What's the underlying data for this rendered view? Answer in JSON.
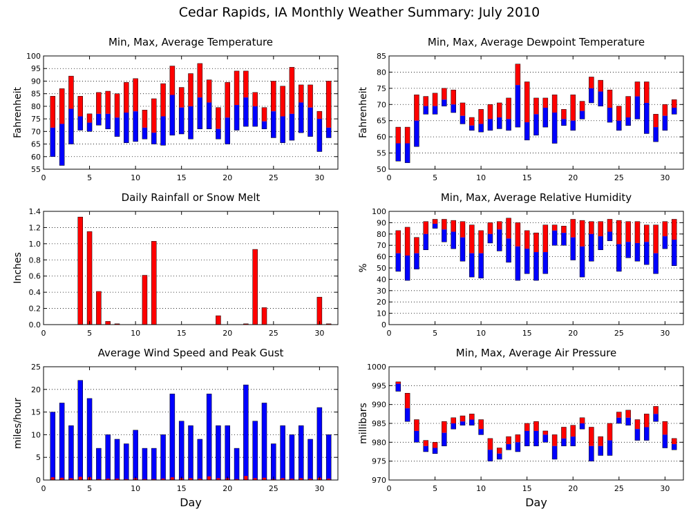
{
  "page": {
    "title": "Cedar Rapids, IA Monthly Weather Summary: July 2010",
    "colors": {
      "red": "#ff0000",
      "blue": "#0000ff",
      "black": "#000000"
    }
  },
  "chart_data": [
    {
      "id": "temp",
      "type": "bar",
      "style": "range",
      "title": "Min, Max, Average Temperature",
      "xlabel": "",
      "ylabel": "Fahrenheit",
      "xlim": [
        0,
        32
      ],
      "ylim": [
        55,
        100
      ],
      "xticks": [
        0,
        5,
        10,
        15,
        20,
        25,
        30
      ],
      "yticks": [
        55,
        60,
        65,
        70,
        75,
        80,
        85,
        90,
        95,
        100
      ],
      "grid": true,
      "x": [
        1,
        2,
        3,
        4,
        5,
        6,
        7,
        8,
        9,
        10,
        11,
        12,
        13,
        14,
        15,
        16,
        17,
        18,
        19,
        20,
        21,
        22,
        23,
        24,
        25,
        26,
        27,
        28,
        29,
        30,
        31
      ],
      "min": [
        60,
        56.5,
        65,
        70.5,
        70,
        72.5,
        71,
        68,
        65.5,
        66,
        67,
        65,
        64.5,
        68.5,
        69,
        67,
        71,
        71,
        67,
        65,
        70.5,
        72,
        72,
        71,
        67.5,
        65.5,
        66.5,
        69.5,
        68,
        62,
        67.5
      ],
      "avg": [
        71.5,
        73,
        79,
        76,
        73.5,
        77,
        77,
        75.5,
        77.5,
        78,
        71.5,
        69.5,
        76,
        84.5,
        79.5,
        80,
        83.5,
        81.5,
        71,
        75.5,
        80.5,
        83.5,
        80,
        74,
        78,
        76,
        77,
        81.5,
        79.5,
        75,
        71.5
      ],
      "max": [
        84,
        87,
        92,
        84,
        77,
        85.5,
        86,
        85,
        89.5,
        91,
        78.5,
        83,
        89,
        96,
        87.5,
        93,
        97,
        90.5,
        79.5,
        89.5,
        94,
        94,
        85.5,
        79.5,
        90,
        88,
        95.5,
        88.5,
        88.5,
        78,
        90
      ]
    },
    {
      "id": "dewpoint",
      "type": "bar",
      "style": "range",
      "title": "Min, Max, Average Dewpoint Temperature",
      "xlabel": "",
      "ylabel": "Fahrenheit",
      "xlim": [
        0,
        32
      ],
      "ylim": [
        50,
        85
      ],
      "xticks": [
        0,
        5,
        10,
        15,
        20,
        25,
        30
      ],
      "yticks": [
        50,
        55,
        60,
        65,
        70,
        75,
        80,
        85
      ],
      "grid": true,
      "x": [
        1,
        2,
        3,
        4,
        5,
        6,
        7,
        8,
        9,
        10,
        11,
        12,
        13,
        14,
        15,
        16,
        17,
        18,
        19,
        20,
        21,
        22,
        23,
        24,
        25,
        26,
        27,
        28,
        29,
        30,
        31
      ],
      "min": [
        52.5,
        52,
        57,
        67,
        67,
        69.5,
        67.5,
        64,
        62,
        61.5,
        62,
        62.5,
        62,
        63,
        59,
        60.5,
        63,
        58,
        63.5,
        62,
        65.5,
        70.5,
        69.5,
        64.5,
        62,
        63.5,
        65.5,
        61,
        58.5,
        62,
        67
      ],
      "avg": [
        58,
        58,
        65,
        69.5,
        69.5,
        71.5,
        70,
        66.5,
        63.5,
        64,
        65.5,
        66,
        65.5,
        76,
        64.5,
        67,
        69,
        67.5,
        65.5,
        65,
        68,
        75,
        74,
        69,
        65,
        66,
        72.5,
        70.5,
        63,
        66.5,
        69
      ],
      "max": [
        63,
        63,
        73,
        72.5,
        73.5,
        75,
        74.5,
        70.5,
        66,
        68.5,
        70,
        70.5,
        72,
        82.5,
        77,
        72,
        72,
        73,
        68.5,
        73,
        71,
        78.5,
        77.5,
        74.5,
        69.5,
        72.5,
        77,
        77,
        67,
        70,
        71.5
      ]
    },
    {
      "id": "rain",
      "type": "bar",
      "title": "Daily Rainfall or Snow Melt",
      "xlabel": "",
      "ylabel": "Inches",
      "xlim": [
        0,
        32
      ],
      "ylim": [
        0,
        1.4
      ],
      "xticks": [
        0,
        5,
        10,
        15,
        20,
        25,
        30
      ],
      "yticks": [
        0,
        0.2,
        0.4,
        0.6,
        0.8,
        1,
        1.2,
        1.4
      ],
      "ytick_labels": [
        "0.0",
        "0.2",
        "0.4",
        "0.6",
        "0.8",
        "1.0",
        "1.2",
        "1.4"
      ],
      "grid": true,
      "x": [
        1,
        2,
        3,
        4,
        5,
        6,
        7,
        8,
        9,
        10,
        11,
        12,
        13,
        14,
        15,
        16,
        17,
        18,
        19,
        20,
        21,
        22,
        23,
        24,
        25,
        26,
        27,
        28,
        29,
        30,
        31
      ],
      "values": [
        0,
        0,
        0,
        1.33,
        1.15,
        0.41,
        0.04,
        0.01,
        0,
        0,
        0.61,
        1.03,
        0,
        0,
        0,
        0,
        0,
        0,
        0.11,
        0,
        0,
        0.01,
        0.93,
        0.21,
        0,
        0,
        0,
        0,
        0,
        0.34,
        0.01
      ]
    },
    {
      "id": "humidity",
      "type": "bar",
      "style": "range",
      "title": "Min, Max, Average Relative Humidity",
      "xlabel": "",
      "ylabel": "%",
      "xlim": [
        0,
        32
      ],
      "ylim": [
        0,
        100
      ],
      "xticks": [
        0,
        5,
        10,
        15,
        20,
        25,
        30
      ],
      "yticks": [
        0,
        10,
        20,
        30,
        40,
        50,
        60,
        70,
        80,
        90,
        100
      ],
      "grid": true,
      "x": [
        1,
        2,
        3,
        4,
        5,
        6,
        7,
        8,
        9,
        10,
        11,
        12,
        13,
        14,
        15,
        16,
        17,
        18,
        19,
        20,
        21,
        22,
        23,
        24,
        25,
        26,
        27,
        28,
        29,
        30,
        31
      ],
      "min": [
        47,
        39,
        49,
        66,
        85,
        73,
        67,
        56,
        42,
        41,
        72,
        65,
        55,
        39,
        45,
        39,
        45,
        70,
        70,
        57,
        42,
        56,
        66,
        74,
        47,
        59,
        56,
        53,
        45,
        67,
        52
      ],
      "avg": [
        63,
        61,
        63,
        80,
        89,
        84,
        82,
        77,
        63,
        63,
        80,
        84,
        76,
        69,
        67,
        64,
        64,
        83,
        81,
        77,
        69,
        80,
        78,
        82,
        71,
        73,
        72,
        73,
        63,
        78,
        75
      ],
      "max": [
        83,
        86,
        77,
        91,
        93,
        93,
        92,
        91,
        88,
        83,
        90,
        91,
        94,
        90,
        83,
        81,
        88,
        88,
        87,
        93,
        92,
        91,
        91,
        93,
        92,
        91,
        91,
        88,
        88,
        91,
        93
      ]
    },
    {
      "id": "wind",
      "type": "bar",
      "title": "Average Wind Speed and Peak Gust",
      "xlabel": "Day",
      "ylabel": "miles/hour",
      "xlim": [
        0,
        32
      ],
      "ylim": [
        0,
        25
      ],
      "xticks": [
        0,
        5,
        10,
        15,
        20,
        25,
        30
      ],
      "yticks": [
        0,
        5,
        10,
        15,
        20,
        25
      ],
      "grid": true,
      "x": [
        1,
        2,
        3,
        4,
        5,
        6,
        7,
        8,
        9,
        10,
        11,
        12,
        13,
        14,
        15,
        16,
        17,
        18,
        19,
        20,
        21,
        22,
        23,
        24,
        25,
        26,
        27,
        28,
        29,
        30,
        31
      ],
      "series": [
        {
          "values": [
            15,
            17,
            12,
            22,
            18,
            7,
            10,
            9,
            8,
            11,
            7,
            7,
            10,
            19,
            13,
            12,
            9,
            19,
            12,
            12,
            7,
            21,
            13,
            17,
            8,
            12,
            10,
            12,
            9,
            16,
            10
          ]
        },
        {
          "values": [
            0.6,
            0.5,
            0.4,
            0.7,
            0.6,
            0.2,
            0.3,
            0.3,
            0.2,
            0.4,
            0.2,
            0.2,
            0.3,
            0.6,
            0.4,
            0.4,
            0.3,
            0.8,
            0.4,
            0.4,
            0.2,
            0.9,
            0.4,
            0.5,
            0.2,
            0.4,
            0.3,
            0.4,
            0.3,
            0.5,
            0.3
          ]
        }
      ]
    },
    {
      "id": "pressure",
      "type": "bar",
      "style": "range",
      "title": "Min, Max, Average Air Pressure",
      "xlabel": "Day",
      "ylabel": "millibars",
      "xlim": [
        0,
        32
      ],
      "ylim": [
        970,
        1000
      ],
      "xticks": [
        0,
        5,
        10,
        15,
        20,
        25,
        30
      ],
      "yticks": [
        970,
        975,
        980,
        985,
        990,
        995,
        1000
      ],
      "grid": true,
      "x": [
        1,
        2,
        3,
        4,
        5,
        6,
        7,
        8,
        9,
        10,
        11,
        12,
        13,
        14,
        15,
        16,
        17,
        18,
        19,
        20,
        21,
        22,
        23,
        24,
        25,
        26,
        27,
        28,
        29,
        30,
        31
      ],
      "min": [
        993.5,
        985.5,
        980,
        977.5,
        977,
        979,
        983.5,
        984.5,
        984.5,
        982,
        975,
        975.5,
        978,
        977.5,
        979,
        979,
        980,
        975.5,
        979,
        979,
        983.5,
        975,
        976.5,
        976.5,
        985,
        984.5,
        980.5,
        980.5,
        985.5,
        978.5,
        978
      ],
      "avg": [
        995.5,
        989,
        983,
        979,
        978.5,
        982.5,
        985,
        985.5,
        986,
        983.5,
        978,
        977,
        979.5,
        980,
        983,
        983,
        982,
        979,
        981,
        981.5,
        985,
        979,
        979,
        980.5,
        986.5,
        986.5,
        983.5,
        984,
        987.5,
        982,
        979.5
      ],
      "max": [
        996,
        993,
        986,
        980.5,
        980,
        985.5,
        986.5,
        987,
        987.5,
        986,
        981,
        978.5,
        981.5,
        982,
        985,
        985.5,
        983,
        982,
        984,
        984.5,
        986.5,
        984,
        981.5,
        985,
        988,
        988.5,
        986,
        987.5,
        989.5,
        985.5,
        981
      ]
    }
  ]
}
